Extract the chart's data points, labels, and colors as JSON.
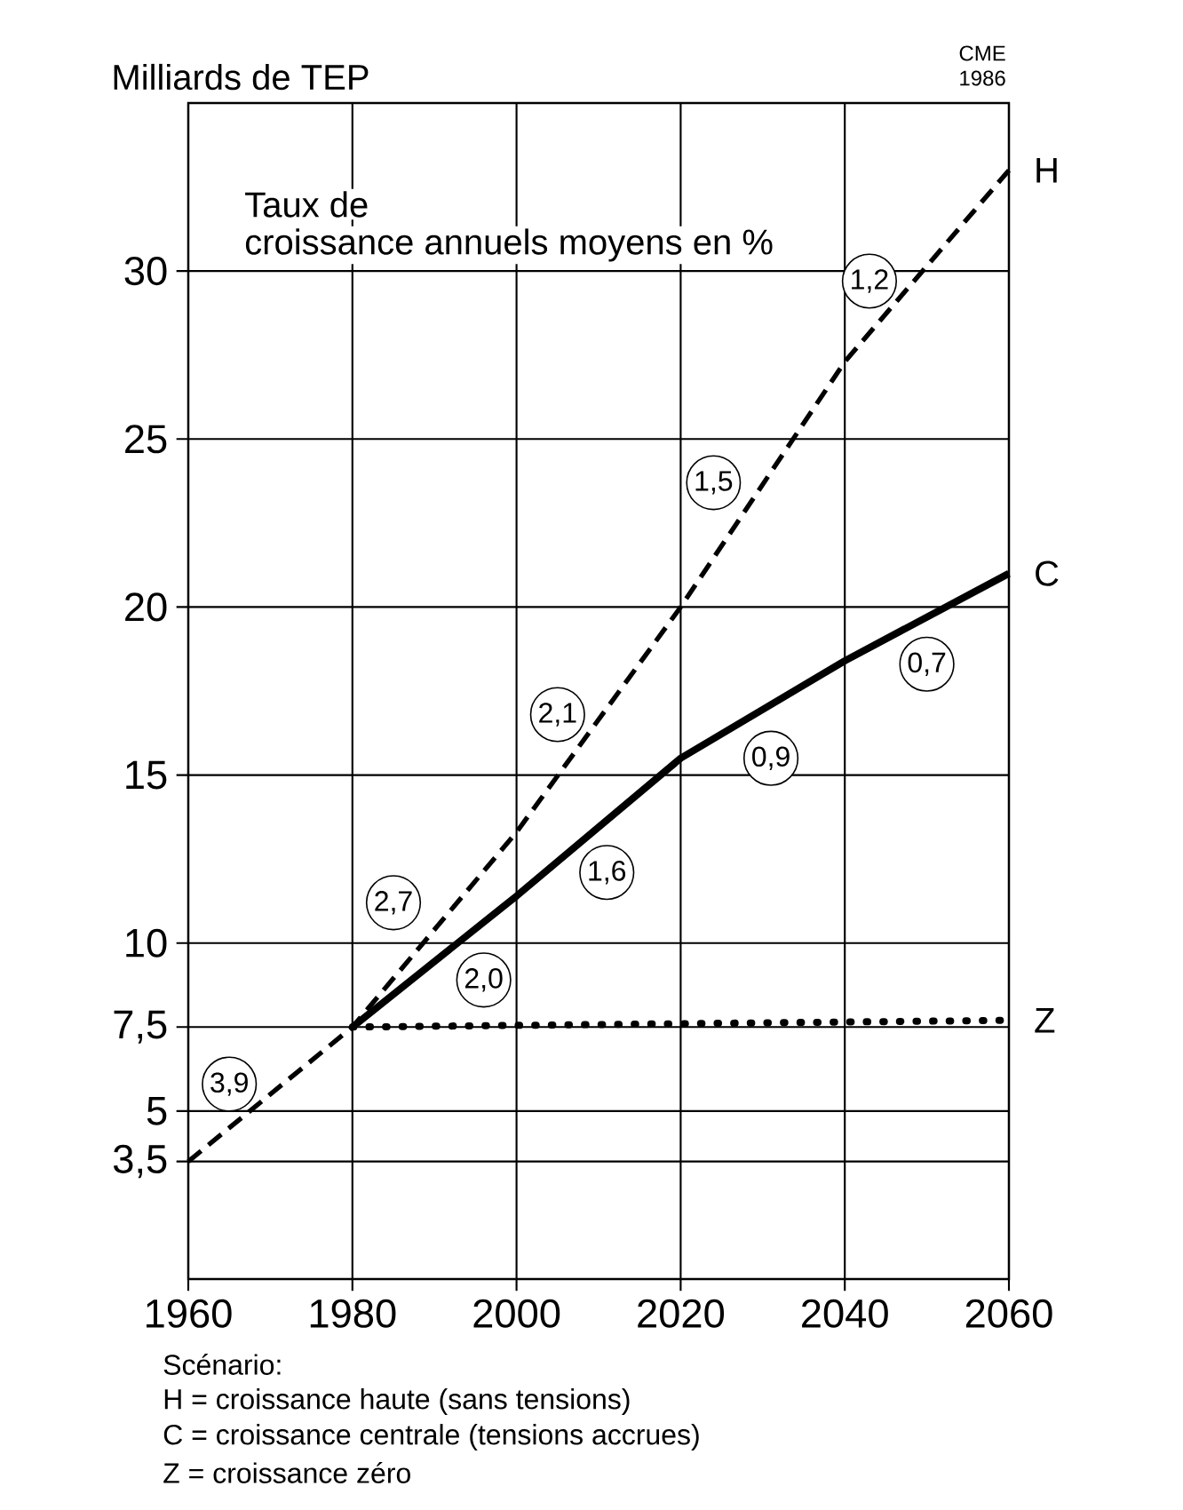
{
  "chart_data": {
    "type": "line",
    "ylabel": "Milliards de TEP",
    "xlim": [
      1960,
      2060
    ],
    "xticks": [
      1960,
      1980,
      2000,
      2020,
      2040,
      2060
    ],
    "ylim": [
      0,
      35
    ],
    "yticks": [
      {
        "value": 3.5,
        "label": "3,5"
      },
      5,
      {
        "value": 7.5,
        "label": "7,5"
      },
      10,
      15,
      20,
      25,
      30
    ],
    "grid": true,
    "marker": "none",
    "series": [
      {
        "name": "H",
        "color": "#000000",
        "line_style": "dashed",
        "x": [
          1960,
          1980,
          2000,
          2020,
          2040,
          2060
        ],
        "values": [
          3.5,
          7.5,
          13.3,
          20,
          27.3,
          33
        ]
      },
      {
        "name": "C",
        "color": "#000000",
        "line_style": "solid",
        "x": [
          1980,
          2000,
          2020,
          2040,
          2060
        ],
        "values": [
          7.5,
          11.4,
          15.5,
          18.4,
          21
        ]
      },
      {
        "name": "Z",
        "color": "#000000",
        "line_style": "dotted",
        "x": [
          1980,
          2060
        ],
        "values": [
          7.5,
          7.7
        ]
      }
    ],
    "annotations": [
      "Taux de",
      "croissance annuels moyens en %",
      "CME",
      "1986",
      "Scénario:",
      "H = croissance haute (sans tensions)",
      "C = croissance centrale (tensions accrues)",
      "Z = croissance zéro",
      {
        "text": "3,9",
        "x": 1965,
        "y": 5.8
      },
      {
        "text": "2,7",
        "x": 1985,
        "y": 11.2
      },
      {
        "text": "2,0",
        "x": 1996,
        "y": 8.9
      },
      {
        "text": "2,1",
        "x": 2005,
        "y": 16.8
      },
      {
        "text": "1,6",
        "x": 2011,
        "y": 12.1
      },
      {
        "text": "1,5",
        "x": 2024,
        "y": 23.7
      },
      {
        "text": "0,9",
        "x": 2031,
        "y": 15.5
      },
      {
        "text": "1,2",
        "x": 2043,
        "y": 29.7
      },
      {
        "text": "0,7",
        "x": 2050,
        "y": 18.3
      }
    ]
  }
}
